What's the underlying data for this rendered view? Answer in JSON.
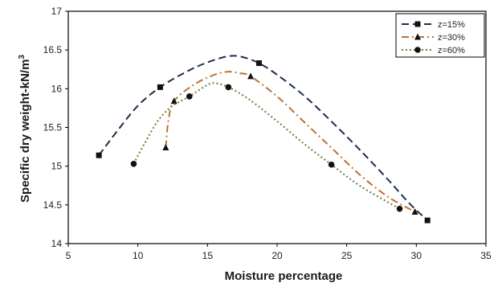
{
  "chart_data": {
    "type": "line",
    "xlabel": "Moisture percentage",
    "ylabel": "Specific dry weight-kN/m",
    "ylabel_sup": "3",
    "xlim": [
      5,
      35
    ],
    "ylim": [
      14,
      17
    ],
    "xticks": [
      5,
      10,
      15,
      20,
      25,
      30,
      35
    ],
    "yticks": [
      14,
      14.5,
      15,
      15.5,
      16,
      16.5,
      17
    ],
    "xtick_labels": [
      "5",
      "10",
      "15",
      "20",
      "25",
      "30",
      "35"
    ],
    "ytick_labels": [
      "14",
      "14.5",
      "15",
      "15.5",
      "16",
      "16.5",
      "17"
    ],
    "grid": false,
    "legend_position": "top-right",
    "series": [
      {
        "name": "z=15%",
        "color": "#1f2d4a",
        "line_style": "dashed",
        "marker": "square",
        "points": [
          [
            7.2,
            15.14
          ],
          [
            11.6,
            16.02
          ],
          [
            18.7,
            16.33
          ],
          [
            30.8,
            14.3
          ]
        ],
        "curve": [
          [
            7.2,
            15.14
          ],
          [
            8.5,
            15.45
          ],
          [
            10,
            15.78
          ],
          [
            11.6,
            16.02
          ],
          [
            13.5,
            16.22
          ],
          [
            15,
            16.34
          ],
          [
            16.5,
            16.42
          ],
          [
            17.5,
            16.41
          ],
          [
            18.7,
            16.33
          ],
          [
            20,
            16.18
          ],
          [
            22,
            15.9
          ],
          [
            24,
            15.56
          ],
          [
            26,
            15.2
          ],
          [
            28,
            14.82
          ],
          [
            29.5,
            14.52
          ],
          [
            30.8,
            14.3
          ]
        ]
      },
      {
        "name": "z=30%",
        "color": "#c0722f",
        "line_style": "dashdot",
        "marker": "triangle",
        "points": [
          [
            12,
            15.24
          ],
          [
            12.6,
            15.84
          ],
          [
            18.1,
            16.16
          ],
          [
            29.9,
            14.41
          ]
        ],
        "curve": [
          [
            12,
            15.24
          ],
          [
            12.2,
            15.6
          ],
          [
            12.6,
            15.84
          ],
          [
            14,
            16.05
          ],
          [
            15.5,
            16.18
          ],
          [
            16.5,
            16.22
          ],
          [
            17.3,
            16.2
          ],
          [
            18.1,
            16.16
          ],
          [
            20,
            15.9
          ],
          [
            22,
            15.56
          ],
          [
            24,
            15.22
          ],
          [
            26,
            14.88
          ],
          [
            28,
            14.6
          ],
          [
            29.9,
            14.41
          ]
        ]
      },
      {
        "name": "z=60%",
        "color": "#6b7f36",
        "line_style": "dotted",
        "marker": "circle",
        "points": [
          [
            9.7,
            15.03
          ],
          [
            13.7,
            15.9
          ],
          [
            16.5,
            16.02
          ],
          [
            23.9,
            15.02
          ],
          [
            28.8,
            14.45
          ]
        ],
        "curve": [
          [
            9.7,
            15.03
          ],
          [
            10.5,
            15.3
          ],
          [
            11.5,
            15.6
          ],
          [
            12.5,
            15.78
          ],
          [
            13.7,
            15.9
          ],
          [
            15,
            16.05
          ],
          [
            15.6,
            16.07
          ],
          [
            16.5,
            16.02
          ],
          [
            18,
            15.86
          ],
          [
            20,
            15.58
          ],
          [
            22,
            15.28
          ],
          [
            23.9,
            15.02
          ],
          [
            26,
            14.74
          ],
          [
            28.8,
            14.45
          ]
        ]
      }
    ]
  }
}
